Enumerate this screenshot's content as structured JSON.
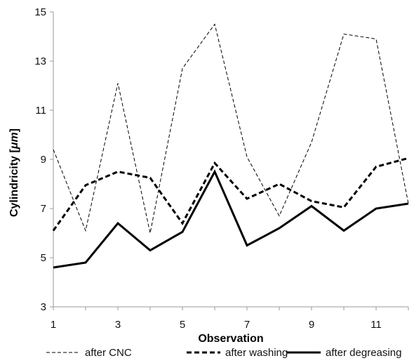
{
  "chart_data": {
    "type": "line",
    "xlabel": "Observation",
    "ylabel": "Cylindricity [μm]",
    "ylabel_main": "Cylindricity [",
    "ylabel_unit": "μm",
    "ylabel_close": "]",
    "xlim": [
      1,
      12
    ],
    "ylim": [
      3,
      15
    ],
    "x": [
      1,
      2,
      3,
      4,
      5,
      6,
      7,
      8,
      9,
      10,
      11,
      12
    ],
    "x_ticks": [
      1,
      3,
      5,
      7,
      9,
      11
    ],
    "x_tick_labels": [
      "1",
      "3",
      "5",
      "7",
      "9",
      "11"
    ],
    "y_ticks": [
      3,
      5,
      7,
      9,
      11,
      13,
      15
    ],
    "y_tick_labels": [
      "3",
      "5",
      "7",
      "9",
      "11",
      "13",
      "15"
    ],
    "grid": false,
    "legend_position": "bottom",
    "series": [
      {
        "name": "after CNC",
        "style": "thin-dashed",
        "color": "#000000",
        "values": [
          9.4,
          6.1,
          12.1,
          6.0,
          12.7,
          14.5,
          9.1,
          6.7,
          9.7,
          14.1,
          13.9,
          7.2
        ]
      },
      {
        "name": "after washing",
        "style": "thick-dashed",
        "color": "#000000",
        "values": [
          6.1,
          7.95,
          8.5,
          8.25,
          6.4,
          8.85,
          7.4,
          8.0,
          7.3,
          7.05,
          8.7,
          9.05
        ]
      },
      {
        "name": "after degreasing",
        "style": "solid",
        "color": "#000000",
        "values": [
          4.6,
          4.8,
          6.4,
          5.3,
          6.05,
          8.5,
          5.5,
          6.2,
          7.1,
          6.1,
          7.0,
          7.2
        ]
      }
    ]
  }
}
